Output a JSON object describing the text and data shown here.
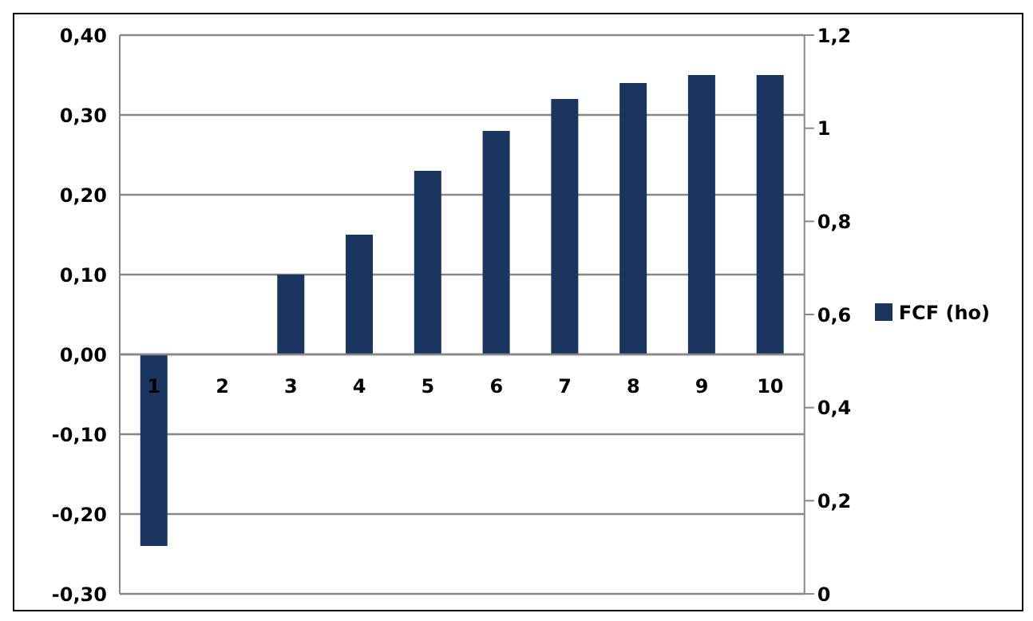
{
  "chart_data": {
    "type": "bar",
    "categories": [
      "1",
      "2",
      "3",
      "4",
      "5",
      "6",
      "7",
      "8",
      "9",
      "10"
    ],
    "series": [
      {
        "name": "FCF (ho)",
        "color": "#1a3660",
        "values": [
          -0.24,
          0,
          0.1,
          0.15,
          0.23,
          0.28,
          0.32,
          0.34,
          0.35,
          0.35
        ]
      }
    ],
    "ylim": [
      -0.3,
      0.4
    ],
    "yticks": [
      {
        "value": -0.3,
        "label": "-0,30"
      },
      {
        "value": -0.2,
        "label": "-0,20"
      },
      {
        "value": -0.1,
        "label": "-0,10"
      },
      {
        "value": 0,
        "label": "0,00"
      },
      {
        "value": 0.1,
        "label": "0,10"
      },
      {
        "value": 0.2,
        "label": "0,20"
      },
      {
        "value": 0.3,
        "label": "0,30"
      },
      {
        "value": 0.4,
        "label": "0,40"
      }
    ],
    "y2lim": [
      0,
      1.2
    ],
    "y2ticks": [
      0,
      {
        "value": 0.2,
        "label": "0,2"
      },
      {
        "value": 0.4,
        "label": "0,4"
      },
      {
        "value": 0.6,
        "label": "0,6"
      },
      {
        "value": 0.8,
        "label": "0,8"
      },
      1,
      {
        "value": 1.2,
        "label": "1,2"
      }
    ],
    "grid": "y",
    "legend": "right"
  }
}
